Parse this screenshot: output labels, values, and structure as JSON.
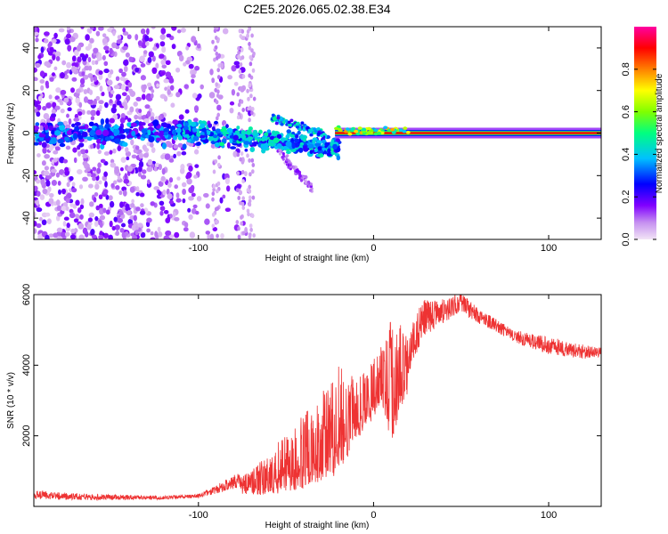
{
  "title": "C2E5.2026.065.02.38.E34",
  "chart_data": [
    {
      "type": "heatmap",
      "name": "spectrogram",
      "xlabel": "Height of straight line (km)",
      "ylabel": "Frequency (Hz)",
      "xlim": [
        -194,
        130
      ],
      "ylim": [
        -50,
        50
      ],
      "xticks": [
        -100,
        0,
        100
      ],
      "yticks": [
        -40,
        -20,
        0,
        20,
        40
      ],
      "colorbar": {
        "label": "Normalized spectral amplitude",
        "range": [
          0,
          1
        ],
        "ticks": [
          "0.0",
          "0.2",
          "0.4",
          "0.6",
          "0.8"
        ],
        "tick_values": [
          0.0,
          0.2,
          0.4,
          0.6,
          0.8
        ],
        "colors": [
          "#f2e4f6",
          "#8000ff",
          "#0000ff",
          "#00c0ff",
          "#00ff80",
          "#80ff00",
          "#ffff00",
          "#ff8000",
          "#ff0000",
          "#ff00a0"
        ]
      },
      "features": {
        "scatter_region_x": [
          -194,
          -70
        ],
        "band_x": [
          -110,
          -20
        ],
        "steady_line_x": [
          -22,
          130
        ],
        "steady_line_frequency_hz": 0
      }
    },
    {
      "type": "line",
      "name": "snr",
      "xlabel": "Height of straight line (km)",
      "ylabel": "SNR (10 * v/v)",
      "xlim": [
        -194,
        130
      ],
      "ylim": [
        0,
        6000
      ],
      "xticks": [
        -100,
        0,
        100
      ],
      "yticks": [
        2000,
        4000,
        6000
      ],
      "color": "#ee3333",
      "envelope": {
        "x": [
          -194,
          -160,
          -120,
          -100,
          -90,
          -80,
          -70,
          -60,
          -50,
          -40,
          -30,
          -20,
          -10,
          -5,
          0,
          5,
          10,
          15,
          20,
          25,
          30,
          40,
          50,
          60,
          70,
          80,
          90,
          100,
          110,
          120,
          130
        ],
        "low": [
          100,
          100,
          150,
          200,
          250,
          300,
          350,
          300,
          400,
          500,
          700,
          900,
          1800,
          2200,
          2500,
          2800,
          1800,
          2500,
          3200,
          3800,
          4400,
          4900,
          5200,
          5000,
          4800,
          4500,
          4300,
          4100,
          4000,
          4000,
          4100
        ],
        "high": [
          450,
          350,
          300,
          350,
          600,
          900,
          1000,
          1600,
          2000,
          2600,
          3200,
          4000,
          3600,
          3800,
          4200,
          4600,
          5400,
          5200,
          5000,
          5600,
          5900,
          5900,
          6100,
          5600,
          5300,
          5000,
          4900,
          4800,
          4700,
          4600,
          4500
        ]
      }
    }
  ]
}
